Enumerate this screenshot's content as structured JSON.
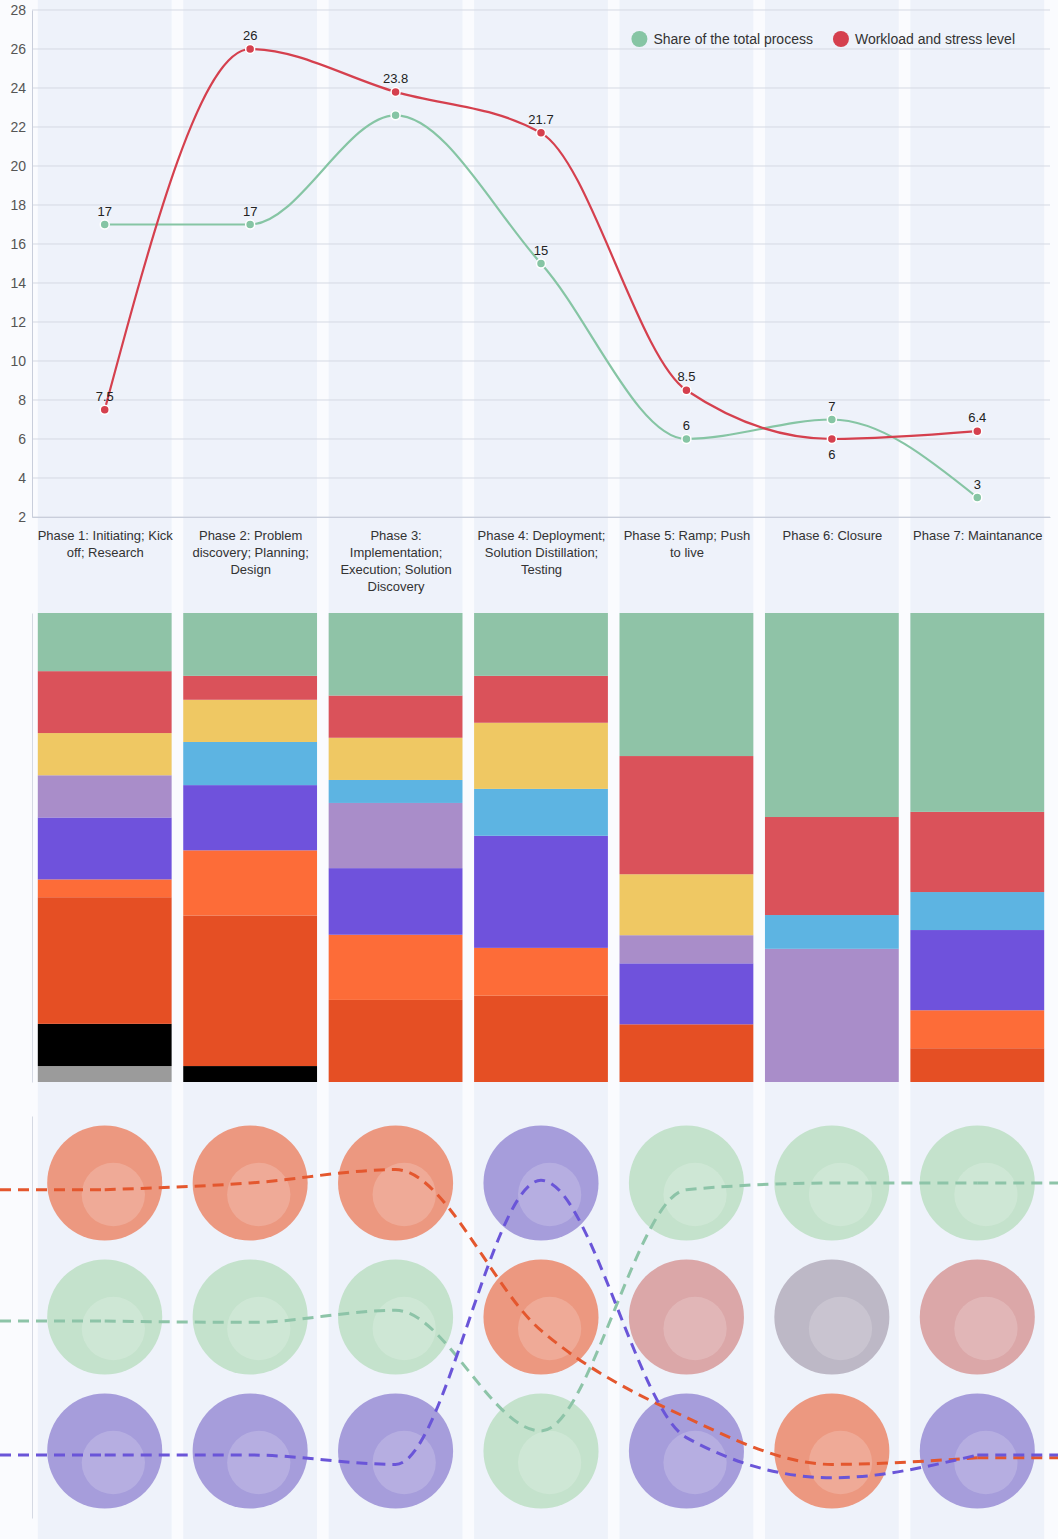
{
  "chart_data": [
    {
      "type": "line",
      "categories": [
        "Phase 1: Initiating; Kick off; Research",
        "Phase 2: Problem discovery; Planning; Design",
        "Phase 3: Implementation; Execution; Solution Discovery",
        "Phase 4: Deployment; Solution Distillation; Testing",
        "Phase 5: Ramp; Push to live",
        "Phase 6: Closure",
        "Phase 7: Maintanance"
      ],
      "series": [
        {
          "name": "Share of the total process",
          "color": "#86c5a4",
          "marker": "circle",
          "values": [
            17,
            17,
            22.6,
            15,
            6,
            7,
            3
          ],
          "value_labels": [
            "17",
            "17",
            null,
            "15",
            "6",
            "7",
            "3"
          ]
        },
        {
          "name": "Workload and stress level",
          "color": "#d5404e",
          "marker": "circle",
          "values": [
            7.5,
            26,
            23.8,
            21.7,
            8.5,
            6,
            6.4
          ]
        }
      ],
      "ylim": [
        2,
        28
      ],
      "yticks": [
        2,
        4,
        6,
        8,
        10,
        12,
        14,
        16,
        18,
        20,
        22,
        24,
        26,
        28
      ],
      "grid": true,
      "legend": "top-right",
      "data_labels": true
    },
    {
      "type": "bar",
      "stacked": true,
      "tick_labels": false,
      "categories": [
        null,
        null,
        null,
        null,
        null,
        null,
        null
      ],
      "ylim": [
        0,
        100
      ],
      "series": [
        {
          "color": "#9b9b9b",
          "values": [
            3.4,
            0,
            0,
            0,
            0,
            0,
            0
          ]
        },
        {
          "color": "#000000",
          "values": [
            9,
            3.4,
            0,
            0,
            0,
            0,
            0
          ]
        },
        {
          "color": "#e54f24",
          "values": [
            27,
            32.1,
            17.5,
            18.4,
            12.3,
            0,
            7.2
          ]
        },
        {
          "color": "#fd6c38",
          "values": [
            3.8,
            13.9,
            13.9,
            10.2,
            0,
            0,
            8.1
          ]
        },
        {
          "color": "#6f52dc",
          "values": [
            13.2,
            13.9,
            14.2,
            23.9,
            13,
            0,
            17.1
          ]
        },
        {
          "color": "#a98dc9",
          "values": [
            9,
            0,
            13.9,
            0,
            6,
            28.4,
            0
          ]
        },
        {
          "color": "#5db4e2",
          "values": [
            0,
            9.2,
            4.9,
            10,
            0,
            7.2,
            8.1
          ]
        },
        {
          "color": "#efc863",
          "values": [
            9,
            9,
            9,
            14.1,
            13,
            0,
            0
          ]
        },
        {
          "color": "#da525a",
          "values": [
            13.2,
            5.1,
            9,
            10,
            25.2,
            20.9,
            17.1
          ]
        },
        {
          "color": "#8fc3a7",
          "values": [
            12.4,
            13.4,
            17.6,
            13.4,
            30.5,
            43.5,
            42.4
          ]
        }
      ]
    },
    {
      "type": "line",
      "tick_labels": false,
      "line_style": "dashed",
      "categories": [
        null,
        null,
        null,
        null,
        null,
        null,
        null
      ],
      "ylim": [
        0.5,
        3.5
      ],
      "series": [
        {
          "color": "#e4572e",
          "values": [
            1.05,
            1,
            0.9,
            2.1,
            2.75,
            3.1,
            3.05
          ]
        },
        {
          "color": "#8dc4a8",
          "values": [
            2.03,
            2.04,
            1.95,
            2.85,
            1.05,
            1,
            1
          ]
        },
        {
          "color": "#6a55d8",
          "values": [
            3.03,
            3.03,
            3.1,
            0.98,
            2.9,
            3.2,
            3.03
          ]
        }
      ],
      "rows": [
        {
          "colors": [
            "#ec9880",
            "#ec9880",
            "#ec9880",
            "#a69ddb",
            "#c4e2cc",
            "#c4e2cc",
            "#c4e2cc"
          ]
        },
        {
          "colors": [
            "#c4e2cc",
            "#c4e2cc",
            "#c4e2cc",
            "#ec9880",
            "#dba7a8",
            "#bdb8c6",
            "#dba7a8"
          ]
        },
        {
          "colors": [
            "#a69ddb",
            "#a69ddb",
            "#a69ddb",
            "#c4e2cc",
            "#a69ddb",
            "#ec9880",
            "#a69ddb"
          ]
        }
      ]
    }
  ]
}
